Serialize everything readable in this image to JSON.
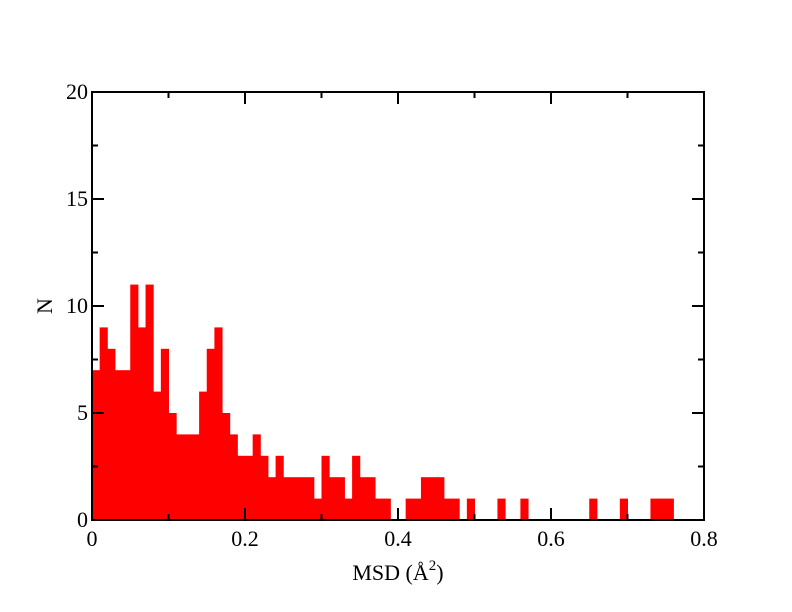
{
  "chart_data": {
    "type": "bar",
    "subtype": "histogram",
    "bin_width": 0.01,
    "bin_starts": [
      0.0,
      0.01,
      0.02,
      0.03,
      0.04,
      0.05,
      0.06,
      0.07,
      0.08,
      0.09,
      0.1,
      0.11,
      0.12,
      0.13,
      0.14,
      0.15,
      0.16,
      0.17,
      0.18,
      0.19,
      0.2,
      0.21,
      0.22,
      0.23,
      0.24,
      0.25,
      0.26,
      0.27,
      0.28,
      0.29,
      0.3,
      0.31,
      0.32,
      0.33,
      0.34,
      0.35,
      0.36,
      0.37,
      0.38,
      0.39,
      0.4,
      0.41,
      0.42,
      0.43,
      0.44,
      0.45,
      0.46,
      0.47,
      0.48,
      0.49,
      0.5,
      0.51,
      0.52,
      0.53,
      0.54,
      0.55,
      0.56,
      0.57,
      0.58,
      0.59,
      0.6,
      0.61,
      0.62,
      0.63,
      0.64,
      0.65,
      0.66,
      0.67,
      0.68,
      0.69,
      0.7,
      0.71,
      0.72,
      0.73,
      0.74,
      0.75,
      0.76
    ],
    "values": [
      7,
      9,
      8,
      7,
      7,
      11,
      9,
      11,
      6,
      8,
      5,
      4,
      4,
      4,
      6,
      8,
      9,
      5,
      4,
      3,
      3,
      4,
      3,
      2,
      3,
      2,
      2,
      2,
      2,
      1,
      3,
      2,
      2,
      1,
      3,
      2,
      2,
      1,
      1,
      0,
      0,
      1,
      1,
      2,
      2,
      2,
      1,
      1,
      0,
      1,
      0,
      0,
      0,
      1,
      0,
      0,
      1,
      0,
      0,
      0,
      0,
      0,
      0,
      0,
      0,
      1,
      0,
      0,
      0,
      1,
      0,
      0,
      0,
      1,
      1,
      1,
      0
    ],
    "xlim": [
      0,
      0.8
    ],
    "ylim": [
      0,
      20
    ],
    "xticks": [
      0,
      0.2,
      0.4,
      0.6,
      0.8
    ],
    "xtick_labels": [
      "0",
      "0.2",
      "0.4",
      "0.6",
      "0.8"
    ],
    "yticks": [
      0,
      5,
      10,
      15,
      20
    ],
    "ytick_labels": [
      "0",
      "5",
      "10",
      "15",
      "20"
    ],
    "xminor_step": 0.1,
    "yminor_step": 2.5,
    "xlabel": "MSD (Å",
    "xlabel_superscript": "2",
    "xlabel_suffix": ")",
    "ylabel": "N",
    "bar_color": "#ff0000",
    "grid": false,
    "legend": "none"
  }
}
